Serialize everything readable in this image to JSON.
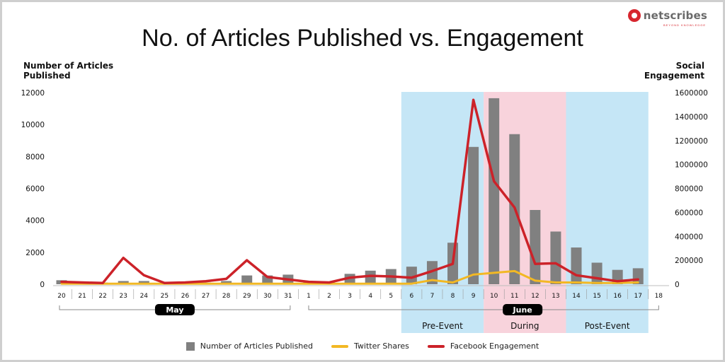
{
  "brand": {
    "name": "netscribes",
    "tagline": "BEYOND KNOWLEDGE",
    "icon": "netscribes-logo-icon",
    "color": "#d7262e"
  },
  "chart_data": {
    "type": "bar-line-combo",
    "title": "No. of Articles Published vs. Engagement",
    "ylabel_left": "Number of Articles Published",
    "ylabel_right": "Social Engagement",
    "ylim_left": [
      0,
      12000
    ],
    "ylim_right": [
      0,
      1600000
    ],
    "yticks_left": [
      0,
      2000,
      4000,
      6000,
      8000,
      10000,
      12000
    ],
    "yticks_right": [
      0,
      200000,
      400000,
      600000,
      800000,
      1000000,
      1200000,
      1400000,
      1600000
    ],
    "categories": [
      "20",
      "21",
      "22",
      "23",
      "24",
      "25",
      "26",
      "27",
      "28",
      "29",
      "30",
      "31",
      "1",
      "2",
      "3",
      "4",
      "5",
      "6",
      "7",
      "8",
      "9",
      "10",
      "11",
      "12",
      "13",
      "14",
      "15",
      "16",
      "17",
      "18"
    ],
    "months": [
      {
        "label": "May",
        "from": 0,
        "to": 11
      },
      {
        "label": "June",
        "from": 12,
        "to": 29
      }
    ],
    "phases": [
      {
        "label": "Pre-Event",
        "from": 17,
        "to": 20,
        "color": "#c5e6f6"
      },
      {
        "label": "During",
        "from": 21,
        "to": 24,
        "color": "#f8d3dc"
      },
      {
        "label": "Post-Event",
        "from": 25,
        "to": 28,
        "color": "#c5e6f6"
      }
    ],
    "grid": false,
    "legend_position": "bottom",
    "series": [
      {
        "name": "Number of Articles Published",
        "kind": "bar",
        "axis": "left",
        "color": "#808080",
        "values": [
          250,
          150,
          100,
          200,
          200,
          80,
          150,
          100,
          200,
          550,
          550,
          600,
          150,
          150,
          650,
          850,
          950,
          1100,
          1450,
          2600,
          8600,
          11650,
          9400,
          4650,
          3300,
          2300,
          1350,
          900,
          1000,
          null
        ]
      },
      {
        "name": "Twitter Shares",
        "kind": "line",
        "axis": "right",
        "color": "#f2b824",
        "values": [
          5000,
          5000,
          5000,
          5000,
          5000,
          5000,
          5000,
          5000,
          5000,
          5000,
          5000,
          5000,
          5000,
          5000,
          5000,
          5000,
          5000,
          5000,
          35000,
          15000,
          80000,
          95000,
          110000,
          30000,
          15000,
          15000,
          10000,
          10000,
          15000,
          null
        ]
      },
      {
        "name": "Facebook Engagement",
        "kind": "line",
        "axis": "right",
        "color": "#cc2229",
        "values": [
          20000,
          15000,
          10000,
          220000,
          75000,
          10000,
          15000,
          25000,
          45000,
          200000,
          60000,
          40000,
          20000,
          15000,
          55000,
          70000,
          65000,
          55000,
          110000,
          170000,
          1540000,
          860000,
          640000,
          170000,
          175000,
          75000,
          50000,
          25000,
          40000,
          null
        ]
      }
    ]
  }
}
